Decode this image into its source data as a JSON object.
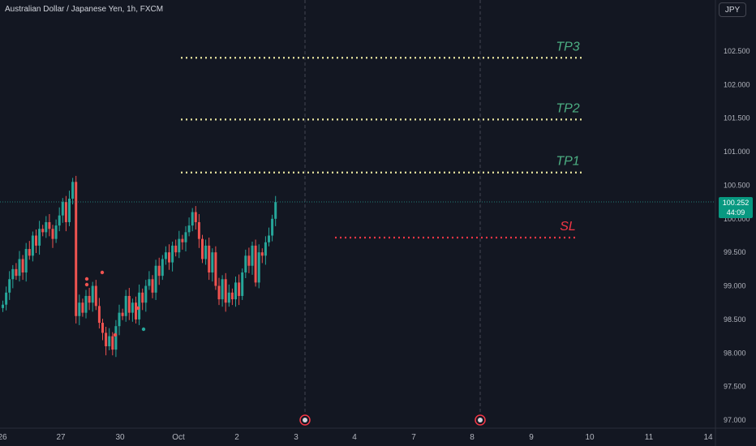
{
  "symbol_title": "Australian Dollar / Japanese Yen, 1h, FXCM",
  "currency_button": "JPY",
  "last_price": "100.252",
  "countdown": "44:09",
  "colors": {
    "background": "#131722",
    "up": "#26a69a",
    "down": "#ef5350",
    "tp_line": "#e9e5a0",
    "sl_line": "#f23645",
    "tp_label": "#4caf83",
    "sl_label": "#f23645",
    "axis_text": "#b2b5be",
    "price_badge": "#089981"
  },
  "chart_data": {
    "type": "candlestick",
    "symbol": "Australian Dollar / Japanese Yen",
    "interval": "1h",
    "source": "FXCM",
    "y_axis": {
      "range": [
        97.0,
        103.0
      ],
      "ticks": [
        "97.000",
        "97.500",
        "98.000",
        "98.500",
        "99.000",
        "99.500",
        "100.000",
        "100.500",
        "101.000",
        "101.500",
        "102.000",
        "102.500"
      ]
    },
    "x_axis": {
      "ticks": [
        "26",
        "27",
        "30",
        "Oct",
        "2",
        "3",
        "4",
        "7",
        "8",
        "9",
        "10",
        "11",
        "14"
      ]
    },
    "levels": [
      {
        "label": "TP3",
        "price": 102.4,
        "x_start": "Oct 1",
        "x_end": "Oct 10"
      },
      {
        "label": "TP2",
        "price": 101.48,
        "x_start": "Oct 1",
        "x_end": "Oct 10"
      },
      {
        "label": "TP1",
        "price": 100.69,
        "x_start": "Oct 1",
        "x_end": "Oct 10"
      },
      {
        "label": "SL",
        "price": 99.72,
        "x_start": "Oct 4",
        "x_end": "Oct 10"
      }
    ],
    "current_price": 100.252,
    "vertical_markers": [
      "Oct 3",
      "Oct 8"
    ],
    "close_path": [
      98.72,
      98.9,
      99.1,
      99.25,
      99.15,
      99.4,
      99.2,
      99.55,
      99.45,
      99.75,
      99.6,
      99.85,
      99.8,
      99.95,
      99.85,
      99.7,
      99.9,
      100.05,
      100.25,
      99.95,
      100.3,
      100.55,
      98.55,
      98.75,
      98.6,
      98.85,
      98.75,
      99.0,
      98.7,
      98.45,
      98.3,
      98.1,
      98.25,
      98.05,
      98.4,
      98.6,
      98.55,
      98.85,
      98.6,
      98.75,
      98.5,
      98.9,
      98.75,
      99.0,
      99.1,
      98.9,
      99.3,
      99.15,
      99.4,
      99.5,
      99.35,
      99.6,
      99.5,
      99.7,
      99.65,
      99.8,
      99.9,
      100.1,
      99.95,
      99.7,
      99.4,
      99.6,
      99.2,
      99.5,
      99.0,
      98.8,
      99.1,
      98.75,
      98.9,
      98.8,
      99.05,
      98.85,
      99.2,
      99.45,
      99.3,
      99.6,
      99.05,
      99.5,
      99.45,
      99.65,
      99.75,
      100.0,
      100.25
    ]
  }
}
